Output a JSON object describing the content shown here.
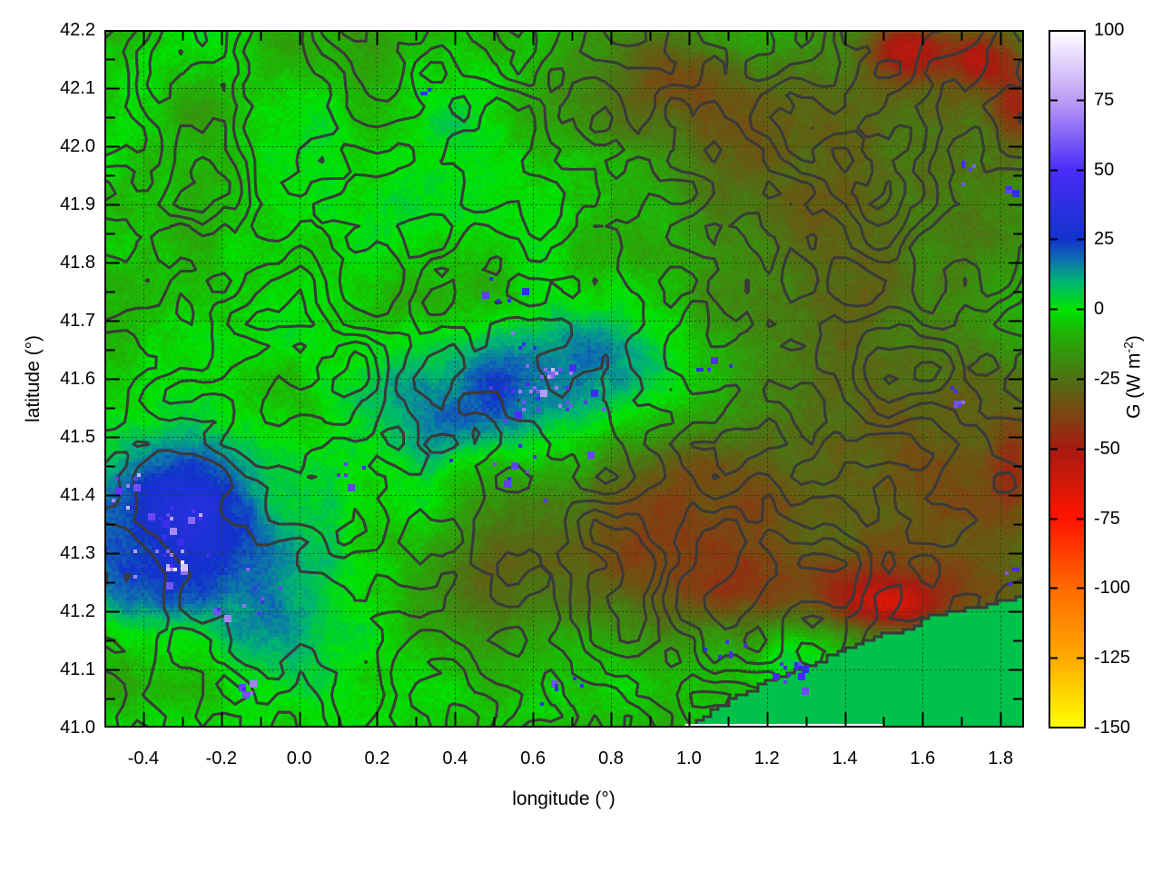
{
  "chart_data": {
    "type": "heatmap",
    "title": "",
    "xlabel": "longitude (°)",
    "ylabel": "latitude (°)",
    "colorbar_label_parts": {
      "prefix": "G (W m",
      "sup": "-2",
      "suffix": ")"
    },
    "xlim": [
      -0.5,
      1.86
    ],
    "ylim": [
      41.0,
      42.2
    ],
    "x_ticks": [
      -0.4,
      -0.2,
      0.0,
      0.2,
      0.4,
      0.6,
      0.8,
      1.0,
      1.2,
      1.4,
      1.6,
      1.8
    ],
    "x_tick_labels": [
      "-0.4",
      "-0.2",
      "0.0",
      "0.2",
      "0.4",
      "0.6",
      "0.8",
      "1.0",
      "1.2",
      "1.4",
      "1.6",
      "1.8"
    ],
    "x_minor_step": 0.1,
    "y_ticks": [
      41.0,
      41.1,
      41.2,
      41.3,
      41.4,
      41.5,
      41.6,
      41.7,
      41.8,
      41.9,
      42.0,
      42.1,
      42.2
    ],
    "y_tick_labels": [
      "41.0",
      "41.1",
      "41.2",
      "41.3",
      "41.4",
      "41.5",
      "41.6",
      "41.7",
      "41.8",
      "41.9",
      "42.0",
      "42.1",
      "42.2"
    ],
    "y_minor_step": 0.05,
    "grid": {
      "x_step": 0.2,
      "y_step": 0.1,
      "style": "dotted",
      "color": "rgba(30,70,10,0.8)"
    },
    "colorbar": {
      "min": -150,
      "max": 100,
      "ticks": [
        100,
        75,
        50,
        25,
        0,
        -25,
        -50,
        -75,
        -100,
        -125,
        -150
      ],
      "tick_labels": [
        "100",
        "75",
        "50",
        "25",
        "0",
        "-25",
        "-50",
        "-75",
        "-100",
        "-125",
        "-150"
      ],
      "palette_stops": [
        [
          -150,
          "#ffff00"
        ],
        [
          -125,
          "#ffaa00"
        ],
        [
          -100,
          "#ff6a00"
        ],
        [
          -75,
          "#ff1400"
        ],
        [
          -50,
          "#a81a10"
        ],
        [
          -25,
          "#4f7014"
        ],
        [
          -8,
          "#1fb406"
        ],
        [
          0,
          "#00e400"
        ],
        [
          10,
          "#00b474"
        ],
        [
          18,
          "#0e6fae"
        ],
        [
          25,
          "#1232cc"
        ],
        [
          50,
          "#4a2cf8"
        ],
        [
          75,
          "#bd9cf6"
        ],
        [
          100,
          "#ffffff"
        ]
      ]
    },
    "field": {
      "seed": 611,
      "base": -5,
      "amp": 14,
      "cell": 4,
      "scale": 0.04,
      "octaves": 4,
      "east_tint": -5,
      "features": [
        [
          -0.33,
          41.4,
          0.3,
          0.14,
          22
        ],
        [
          -0.16,
          41.29,
          0.28,
          0.13,
          20
        ],
        [
          -0.45,
          41.24,
          0.2,
          0.1,
          14
        ],
        [
          -0.05,
          41.18,
          0.15,
          0.07,
          10
        ],
        [
          0.62,
          41.6,
          0.26,
          0.11,
          18
        ],
        [
          0.44,
          41.52,
          0.22,
          0.1,
          10
        ],
        [
          0.82,
          41.64,
          0.16,
          0.08,
          10
        ],
        [
          1.26,
          41.12,
          0.1,
          0.06,
          14
        ],
        [
          0.1,
          41.56,
          0.3,
          0.2,
          4
        ],
        [
          0.33,
          41.42,
          0.06,
          0.12,
          8
        ],
        [
          0.3,
          41.95,
          0.25,
          0.15,
          5
        ],
        [
          -0.25,
          41.65,
          0.2,
          0.12,
          4
        ],
        [
          0.75,
          41.32,
          0.45,
          0.16,
          -20
        ],
        [
          1.25,
          41.42,
          0.42,
          0.2,
          -20
        ],
        [
          0.5,
          41.2,
          0.3,
          0.1,
          -12
        ],
        [
          1.55,
          41.75,
          0.35,
          0.28,
          -15
        ],
        [
          1.15,
          41.97,
          0.45,
          0.2,
          -13
        ],
        [
          1.7,
          41.35,
          0.24,
          0.18,
          -22
        ],
        [
          1.45,
          41.23,
          0.38,
          0.07,
          -24
        ],
        [
          0.95,
          42.14,
          0.18,
          0.08,
          -16
        ],
        [
          1.62,
          42.1,
          0.3,
          0.12,
          -16
        ],
        [
          0.85,
          42.07,
          0.3,
          0.08,
          -12
        ],
        [
          1.57,
          42.17,
          0.1,
          0.05,
          -34
        ],
        [
          1.75,
          42.15,
          0.08,
          0.05,
          -30
        ],
        [
          1.84,
          42.07,
          0.06,
          0.07,
          -26
        ],
        [
          1.52,
          41.21,
          0.12,
          0.04,
          -26
        ],
        [
          1.83,
          41.43,
          0.06,
          0.09,
          -18
        ]
      ],
      "speckle_clusters": [
        [
          0.64,
          41.61,
          0.02,
          0.012,
          10,
          55,
          95
        ],
        [
          0.62,
          41.6,
          0.13,
          0.07,
          30,
          42,
          75
        ],
        [
          0.52,
          41.5,
          0.18,
          0.08,
          14,
          38,
          60
        ],
        [
          -0.32,
          41.28,
          0.02,
          0.012,
          9,
          60,
          97
        ],
        [
          -0.33,
          41.33,
          0.12,
          0.07,
          24,
          42,
          80
        ],
        [
          -0.45,
          41.42,
          0.05,
          0.04,
          8,
          48,
          85
        ],
        [
          -0.15,
          41.23,
          0.1,
          0.05,
          10,
          42,
          70
        ],
        [
          -0.12,
          41.07,
          0.05,
          0.03,
          6,
          48,
          70
        ],
        [
          1.26,
          41.11,
          0.06,
          0.04,
          12,
          35,
          60
        ],
        [
          1.1,
          41.15,
          0.08,
          0.04,
          6,
          38,
          55
        ],
        [
          1.68,
          41.57,
          0.03,
          0.025,
          6,
          40,
          65
        ],
        [
          1.72,
          41.96,
          0.025,
          0.02,
          5,
          40,
          62
        ],
        [
          1.82,
          41.93,
          0.02,
          0.02,
          4,
          40,
          60
        ],
        [
          0.52,
          41.75,
          0.06,
          0.03,
          5,
          38,
          58
        ],
        [
          1.83,
          41.26,
          0.02,
          0.015,
          4,
          40,
          60
        ],
        [
          0.1,
          41.44,
          0.05,
          0.03,
          5,
          38,
          58
        ],
        [
          0.33,
          42.09,
          0.02,
          0.02,
          3,
          30,
          50
        ],
        [
          0.67,
          41.08,
          0.06,
          0.03,
          6,
          40,
          60
        ],
        [
          1.05,
          41.62,
          0.05,
          0.03,
          5,
          38,
          58
        ]
      ]
    },
    "contours": {
      "color": "#3a3a3a",
      "width": 3,
      "levels": [
        -0.42,
        -0.18,
        0.06,
        0.3,
        0.54
      ],
      "scale": 0.0105,
      "octaves": 3,
      "east_bias": 0.45,
      "seed": 417
    },
    "sea": {
      "color": "#00c24a",
      "coast": [
        [
          1.0,
          41.0
        ],
        [
          1.06,
          41.03
        ],
        [
          1.12,
          41.055
        ],
        [
          1.2,
          41.08
        ],
        [
          1.3,
          41.105
        ],
        [
          1.38,
          41.13
        ],
        [
          1.45,
          41.15
        ],
        [
          1.52,
          41.165
        ],
        [
          1.6,
          41.185
        ],
        [
          1.68,
          41.2
        ],
        [
          1.76,
          41.21
        ],
        [
          1.86,
          41.225
        ]
      ],
      "nodata_strip": [
        0.99,
        1.5
      ]
    },
    "axis_color": "#000000"
  }
}
